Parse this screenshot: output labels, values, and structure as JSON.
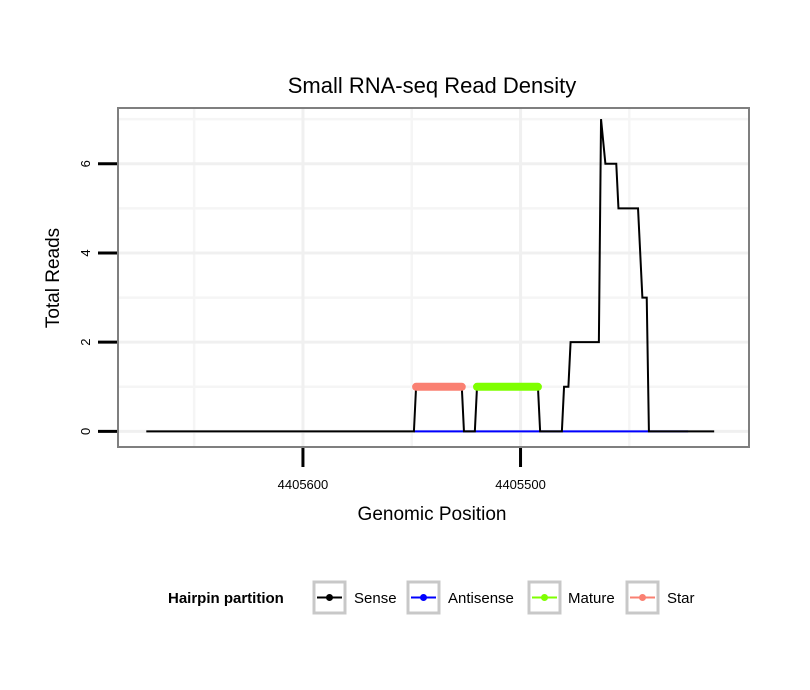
{
  "chart_data": {
    "type": "line",
    "title": "Small RNA-seq Read Density",
    "xlabel": "Genomic Position",
    "ylabel": "Total Reads",
    "x_reversed": true,
    "xlim": [
      4405685,
      4405395
    ],
    "ylim": [
      -0.35,
      7.25
    ],
    "x_ticks": [
      4405600,
      4405500
    ],
    "y_ticks": [
      0,
      2,
      4,
      6
    ],
    "grid": true,
    "legend": {
      "title": "Hairpin partition",
      "position": "bottom",
      "entries": [
        {
          "name": "Sense",
          "color": "#000000"
        },
        {
          "name": "Antisense",
          "color": "#0000ff"
        },
        {
          "name": "Mature",
          "color": "#7fff00"
        },
        {
          "name": "Star",
          "color": "#fa8072"
        }
      ]
    },
    "series": [
      {
        "name": "Antisense",
        "color": "#0000ff",
        "points": [
          [
            4405549,
            0
          ],
          [
            4405423,
            0
          ]
        ]
      },
      {
        "name": "Sense",
        "color": "#000000",
        "points": [
          [
            4405672,
            0
          ],
          [
            4405549,
            0
          ],
          [
            4405548,
            1
          ],
          [
            4405527,
            1
          ],
          [
            4405526,
            0
          ],
          [
            4405521,
            0
          ],
          [
            4405520,
            1
          ],
          [
            4405492,
            1
          ],
          [
            4405491,
            0
          ],
          [
            4405481,
            0
          ],
          [
            4405480,
            1
          ],
          [
            4405478,
            1
          ],
          [
            4405477,
            2
          ],
          [
            4405464,
            2
          ],
          [
            4405463,
            7
          ],
          [
            4405461,
            6
          ],
          [
            4405456,
            6
          ],
          [
            4405455,
            5
          ],
          [
            4405446,
            5
          ],
          [
            4405445,
            4
          ],
          [
            4405444,
            3
          ],
          [
            4405442,
            3
          ],
          [
            4405441,
            0
          ],
          [
            4405411,
            0
          ]
        ]
      },
      {
        "name": "Mature",
        "color": "#7fff00",
        "points": [
          [
            4405520,
            1
          ],
          [
            4405492,
            1
          ]
        ]
      },
      {
        "name": "Star",
        "color": "#fa8072",
        "points": [
          [
            4405548,
            1
          ],
          [
            4405527,
            1
          ]
        ]
      }
    ]
  }
}
